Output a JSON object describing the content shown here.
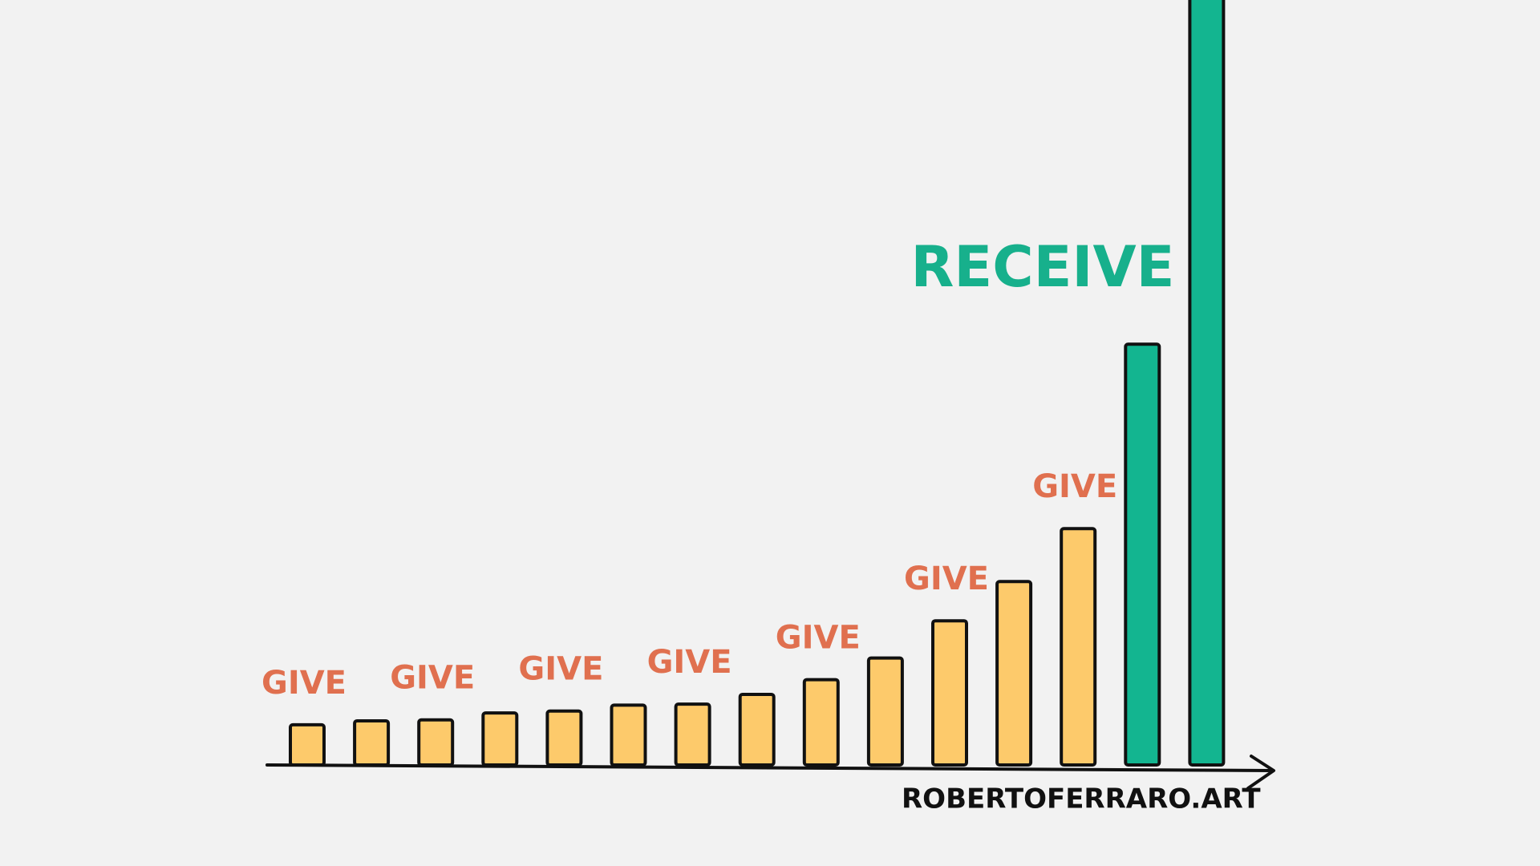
{
  "chart_data": {
    "type": "bar",
    "categories": [
      null,
      null,
      null,
      null,
      null,
      null,
      null,
      null,
      null,
      null,
      null,
      null,
      null,
      null,
      null
    ],
    "values": [
      41,
      45,
      46,
      53,
      55,
      61,
      62,
      72,
      87,
      109,
      147,
      187,
      241,
      429,
      800
    ],
    "colors": [
      "#fdca6b",
      "#fdca6b",
      "#fdca6b",
      "#fdca6b",
      "#fdca6b",
      "#fdca6b",
      "#fdca6b",
      "#fdca6b",
      "#fdca6b",
      "#fdca6b",
      "#fdca6b",
      "#fdca6b",
      "#fdca6b",
      "#13b590",
      "#13b590"
    ],
    "bar_labels": [
      "GIVE",
      null,
      "GIVE",
      null,
      "GIVE",
      null,
      "GIVE",
      null,
      "GIVE",
      null,
      "GIVE",
      null,
      "GIVE",
      null,
      null
    ],
    "bar_label_color": "#e0704f",
    "annotation": "RECEIVE",
    "annotation_color": "#17b08c",
    "credit": "ROBERTOFERRARO.ART",
    "ylim": [
      0,
      780
    ]
  }
}
